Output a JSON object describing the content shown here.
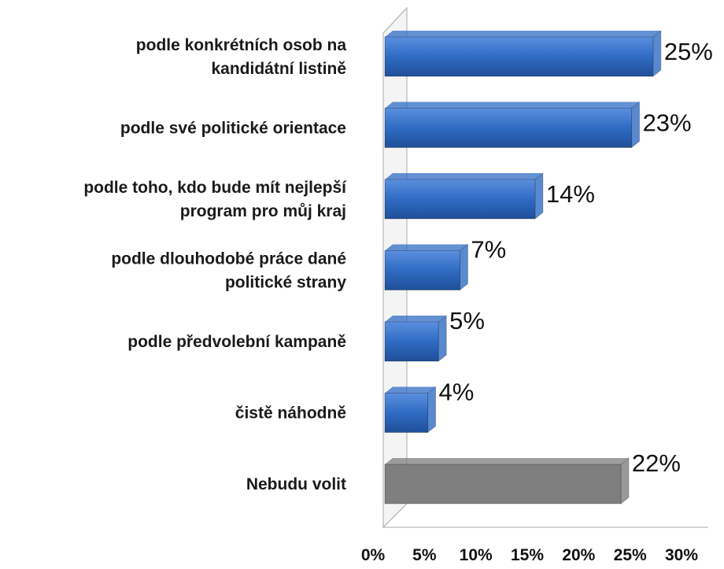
{
  "chart_data": {
    "type": "hbar3d",
    "categories": [
      [
        "podle konkrétních osob na",
        "kandidátní listině"
      ],
      [
        "podle své politické orientace"
      ],
      [
        "podle toho, kdo bude mít nejlepší",
        "program pro můj kraj"
      ],
      [
        "podle dlouhodobé práce dané",
        "politické strany"
      ],
      [
        "podle předvolební kampaně"
      ],
      [
        "čistě náhodně"
      ],
      [
        "Nebudu volit"
      ]
    ],
    "values": [
      25,
      23,
      14,
      7,
      5,
      4,
      22
    ],
    "value_labels": [
      "25%",
      "23%",
      "14%",
      "7%",
      "5%",
      "4%",
      "22%"
    ],
    "colors": [
      "#2f6cc4",
      "#2f6cc4",
      "#2f6cc4",
      "#2f6cc4",
      "#2f6cc4",
      "#2f6cc4",
      "#7f7f7f"
    ],
    "xlim": [
      0,
      30
    ],
    "xticks": [
      {
        "value": 0,
        "label": "0%"
      },
      {
        "value": 5,
        "label": "5%"
      },
      {
        "value": 10,
        "label": "10%"
      },
      {
        "value": 15,
        "label": "15%"
      },
      {
        "value": 20,
        "label": "20%"
      },
      {
        "value": 25,
        "label": "25%"
      },
      {
        "value": 30,
        "label": "30%"
      }
    ]
  }
}
